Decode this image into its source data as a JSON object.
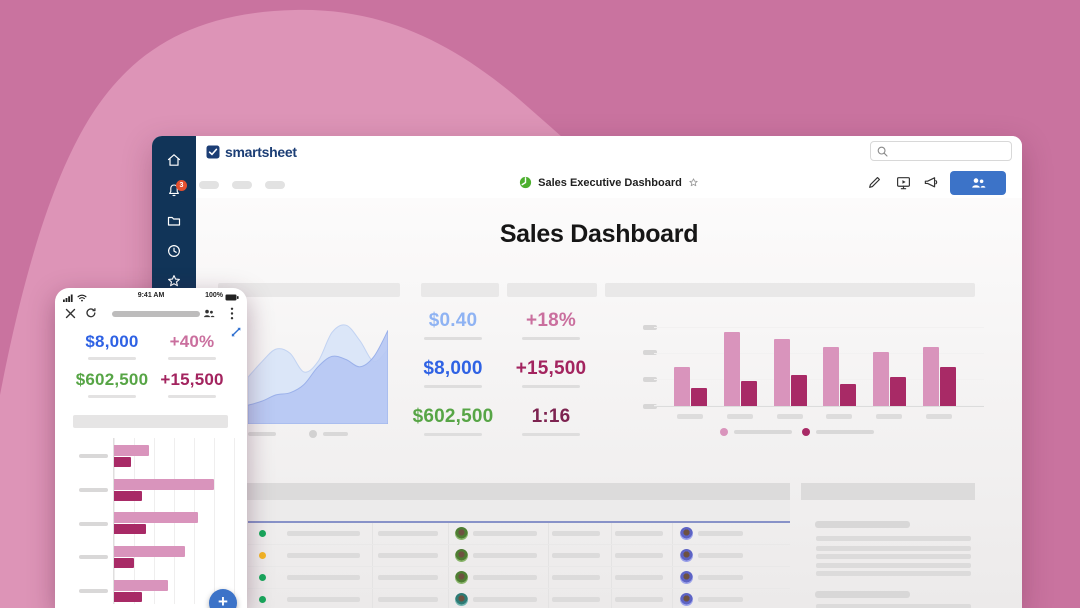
{
  "colors": {
    "background_dark_pink": "#c9739f",
    "background_light_pink": "#dd94b7",
    "sidebar_navy": "#113458",
    "brand_navy": "#1c3e75",
    "share_button_blue": "#3c73c8",
    "fab_blue": "#3c73c8",
    "bar_light_pink": "#d994bc",
    "bar_dark_magenta": "#a82a66",
    "status_green": "#18a85c",
    "status_amber": "#f5b625",
    "table_top_border": "#8892c8"
  },
  "desktop": {
    "brand": "smartsheet",
    "sidebar": {
      "notification_badge": "3",
      "icons": [
        "home-icon",
        "notifications-icon",
        "folder-icon",
        "recents-icon",
        "favorites-icon"
      ]
    },
    "header": {
      "search_placeholder": ""
    },
    "toolbar": {
      "doc_title": "Sales Executive Dashboard",
      "icons": [
        "edit-icon",
        "present-icon",
        "announce-icon",
        "share-people-icon"
      ]
    },
    "content": {
      "page_title": "Sales Dashboard"
    },
    "kpi_columns": [
      {
        "items": [
          {
            "value": "$0.40",
            "color": "#8fb3f3"
          },
          {
            "value": "$8,000",
            "color": "#2f62e4"
          },
          {
            "value": "$602,500",
            "color": "#57a546"
          }
        ]
      },
      {
        "items": [
          {
            "value": "+18%",
            "color": "#ca6f9e"
          },
          {
            "value": "+15,500",
            "color": "#a3245f"
          },
          {
            "value": "1:16",
            "color": "#7d2350"
          }
        ]
      }
    ],
    "table": {
      "rows": [
        {
          "status": "#18a85c",
          "avatar1": "green",
          "avatar2": "purple"
        },
        {
          "status": "#f5b625",
          "avatar1": "green",
          "avatar2": "purple"
        },
        {
          "status": "#18a85c",
          "avatar1": "green",
          "avatar2": "purple"
        },
        {
          "status": "#18a85c",
          "avatar1": "teal",
          "avatar2": "purple"
        }
      ]
    }
  },
  "phone": {
    "status_bar": {
      "time": "9:41 AM",
      "battery_percent": "100%"
    },
    "kpis": [
      {
        "value": "$8,000",
        "color": "#2f62e4"
      },
      {
        "value": "+40%",
        "color": "#ca6f9e"
      },
      {
        "value": "$602,500",
        "color": "#57a546"
      },
      {
        "value": "+15,500",
        "color": "#a3245f"
      }
    ],
    "fab_label": "+"
  },
  "chart_data": [
    {
      "id": "desktop-area",
      "type": "area",
      "series": [
        {
          "name": "series-back",
          "values": [
            0.45,
            0.6,
            0.72,
            0.68,
            0.5,
            0.6,
            0.88,
            0.95,
            0.8,
            0.6,
            0.72
          ]
        },
        {
          "name": "series-front",
          "values": [
            0.18,
            0.22,
            0.28,
            0.3,
            0.38,
            0.55,
            0.65,
            0.62,
            0.55,
            0.65,
            0.9
          ]
        }
      ],
      "ylim": [
        0,
        1
      ],
      "labels_placeholder": true,
      "legend_position": "bottom"
    },
    {
      "id": "desktop-grouped-bar",
      "type": "bar",
      "categories": [
        "",
        "",
        "",
        "",
        "",
        ""
      ],
      "series": [
        {
          "name": "series-light",
          "values": [
            0.49,
            0.92,
            0.84,
            0.74,
            0.68,
            0.74
          ]
        },
        {
          "name": "series-dark",
          "values": [
            0.23,
            0.31,
            0.39,
            0.28,
            0.36,
            0.49
          ]
        }
      ],
      "ylim": [
        0,
        1
      ],
      "grid": true,
      "labels_placeholder": true,
      "legend_position": "bottom"
    },
    {
      "id": "phone-hbar",
      "type": "bar",
      "orientation": "horizontal",
      "categories": [
        "",
        "",
        "",
        "",
        ""
      ],
      "series": [
        {
          "name": "series-light",
          "values": [
            0.3,
            0.87,
            0.73,
            0.62,
            0.47
          ]
        },
        {
          "name": "series-dark",
          "values": [
            0.15,
            0.24,
            0.28,
            0.17,
            0.24
          ]
        }
      ],
      "xlim": [
        0,
        1
      ],
      "grid": true,
      "labels_placeholder": true
    }
  ]
}
